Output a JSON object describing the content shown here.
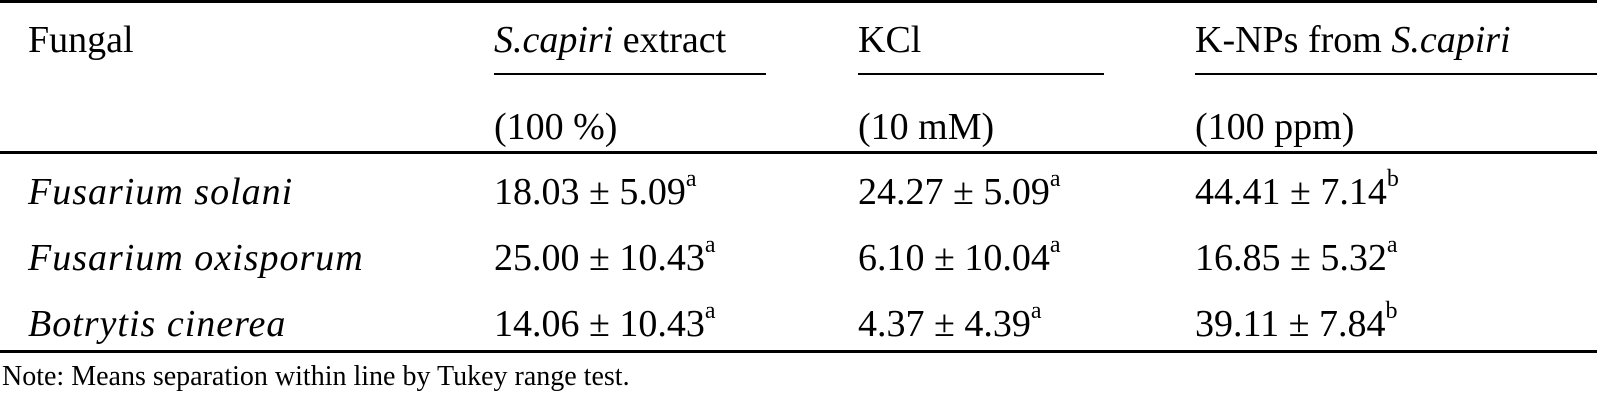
{
  "table": {
    "header_row1": {
      "col0": "Fungal",
      "col1_italic": "S.capiri",
      "col1_rest": " extract",
      "col2": "KCl",
      "col3_rest": "K-NPs from ",
      "col3_italic": "S.capiri"
    },
    "header_row2": {
      "col1": "(100 %)",
      "col2": "(10 mM)",
      "col3": "(100 ppm)"
    },
    "rows": [
      {
        "fungal": "Fusarium solani",
        "extract_value": "18.03 ± 5.09",
        "extract_sup": "a",
        "kcl_value": "24.27 ± 5.09",
        "kcl_sup": "a",
        "knps_value": "44.41 ± 7.14",
        "knps_sup": "b"
      },
      {
        "fungal": "Fusarium oxisporum",
        "extract_value": "25.00 ± 10.43",
        "extract_sup": "a",
        "kcl_value": "6.10 ± 10.04",
        "kcl_sup": "a",
        "knps_value": "16.85 ± 5.32",
        "knps_sup": "a"
      },
      {
        "fungal": "Botrytis cinerea",
        "extract_value": "14.06 ± 10.43",
        "extract_sup": "a",
        "kcl_value": "4.37 ± 4.39",
        "kcl_sup": "a",
        "knps_value": "39.11 ± 7.84",
        "knps_sup": "b"
      }
    ]
  },
  "note": "Note: Means separation within line by Tukey range test."
}
